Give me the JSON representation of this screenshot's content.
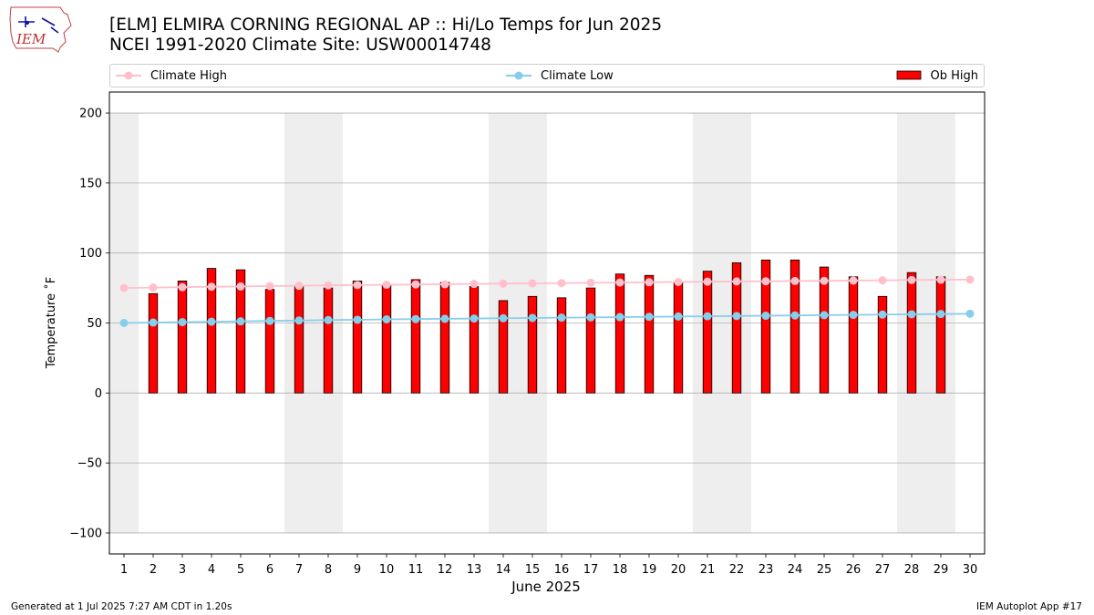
{
  "logo": {
    "text": "IEM"
  },
  "header": {
    "title_line1": "[ELM] ELMIRA CORNING REGIONAL AP :: Hi/Lo Temps for Jun 2025",
    "title_line2": "NCEI 1991-2020 Climate Site: USW00014748"
  },
  "legend": [
    {
      "label": "Climate High",
      "color": "#ffc0cb",
      "kind": "line"
    },
    {
      "label": "Climate Low",
      "color": "#87ceeb",
      "kind": "line"
    },
    {
      "label": "Ob High",
      "color": "#ff0000",
      "kind": "bar"
    }
  ],
  "footer": {
    "left": "Generated at 1 Jul 2025 7:27 AM CDT in 1.20s",
    "right": "IEM Autoplot App #17"
  },
  "chart_data": {
    "type": "bar",
    "title": "[ELM] ELMIRA CORNING REGIONAL AP :: Hi/Lo Temps for Jun 2025",
    "subtitle": "NCEI 1991-2020 Climate Site: USW00014748",
    "xlabel": "June 2025",
    "ylabel": "Temperature ˚F",
    "x": [
      1,
      2,
      3,
      4,
      5,
      6,
      7,
      8,
      9,
      10,
      11,
      12,
      13,
      14,
      15,
      16,
      17,
      18,
      19,
      20,
      21,
      22,
      23,
      24,
      25,
      26,
      27,
      28,
      29,
      30
    ],
    "xlim": [
      0.5,
      30.5
    ],
    "ylim": [
      -115,
      215
    ],
    "yticks": [
      200,
      150,
      100,
      50,
      0,
      -50,
      -100
    ],
    "ytick_labels": [
      "200",
      "150",
      "100",
      "50",
      "0",
      "−50",
      "−100"
    ],
    "grid": "horizontal",
    "legend_position": "top",
    "weekend_shading": {
      "color": "#eeeeee",
      "ranges": [
        [
          0.5,
          1.5
        ],
        [
          6.5,
          8.5
        ],
        [
          13.5,
          15.5
        ],
        [
          20.5,
          22.5
        ],
        [
          27.5,
          29.5
        ]
      ],
      "yrange": [
        -100,
        200
      ]
    },
    "series": [
      {
        "name": "Ob High",
        "kind": "bar",
        "color": "#ff0000",
        "values": [
          null,
          71,
          80,
          89,
          88,
          74,
          76,
          75,
          80,
          77,
          81,
          79,
          76,
          66,
          69,
          68,
          75,
          85,
          84,
          79,
          87,
          93,
          95,
          95,
          90,
          83,
          69,
          86,
          83,
          null
        ]
      },
      {
        "name": "Climate High",
        "kind": "line",
        "color": "#ffc0cb",
        "values": [
          75,
          75.3,
          75.6,
          75.9,
          76.1,
          76.4,
          76.6,
          76.9,
          77.1,
          77.3,
          77.5,
          77.7,
          77.9,
          78.1,
          78.3,
          78.5,
          78.7,
          78.9,
          79.1,
          79.3,
          79.5,
          79.7,
          79.8,
          80,
          80.1,
          80.3,
          80.5,
          80.7,
          80.9,
          81
        ]
      },
      {
        "name": "Climate Low",
        "kind": "line",
        "color": "#87ceeb",
        "values": [
          50,
          50.3,
          50.6,
          50.9,
          51.2,
          51.5,
          51.8,
          52.1,
          52.3,
          52.6,
          52.8,
          53,
          53.2,
          53.4,
          53.6,
          53.8,
          54,
          54.2,
          54.4,
          54.6,
          54.8,
          55,
          55.2,
          55.4,
          55.6,
          55.8,
          56,
          56.2,
          56.4,
          56.6
        ]
      }
    ]
  }
}
